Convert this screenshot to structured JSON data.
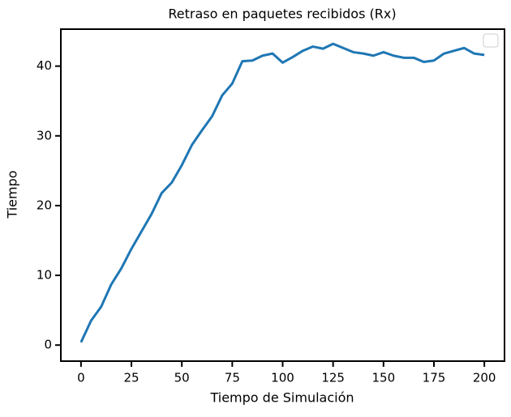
{
  "chart_data": {
    "type": "line",
    "title": "Retraso en paquetes recibidos (Rx)",
    "x_label": "Tiempo de Simulación",
    "y_label": "Tiempo",
    "x": [
      0,
      5,
      10,
      15,
      20,
      25,
      30,
      35,
      40,
      45,
      50,
      55,
      60,
      65,
      70,
      75,
      80,
      85,
      90,
      95,
      100,
      105,
      110,
      115,
      120,
      125,
      130,
      135,
      140,
      145,
      150,
      155,
      160,
      165,
      170,
      175,
      180,
      185,
      190,
      195,
      200
    ],
    "series": [
      {
        "color": "#1f77b4",
        "values": [
          0.4,
          3.5,
          5.5,
          8.7,
          11,
          13.8,
          16.3,
          18.8,
          21.8,
          23.3,
          25.8,
          28.7,
          30.8,
          32.8,
          35.8,
          37.5,
          40.7,
          40.8,
          41.5,
          41.8,
          40.5,
          41.3,
          42.2,
          42.8,
          42.5,
          43.2,
          42.6,
          42,
          41.8,
          41.5,
          42,
          41.5,
          41.2,
          41.2,
          40.6,
          40.8,
          41.8,
          42.2,
          42.6,
          41.8,
          41.6
        ]
      }
    ],
    "xlim": [
      -10,
      210
    ],
    "ylim": [
      -2.3,
      45.3
    ],
    "xticks": [
      0,
      25,
      50,
      75,
      100,
      125,
      150,
      175,
      200
    ],
    "yticks": [
      0,
      10,
      20,
      30,
      40
    ]
  }
}
